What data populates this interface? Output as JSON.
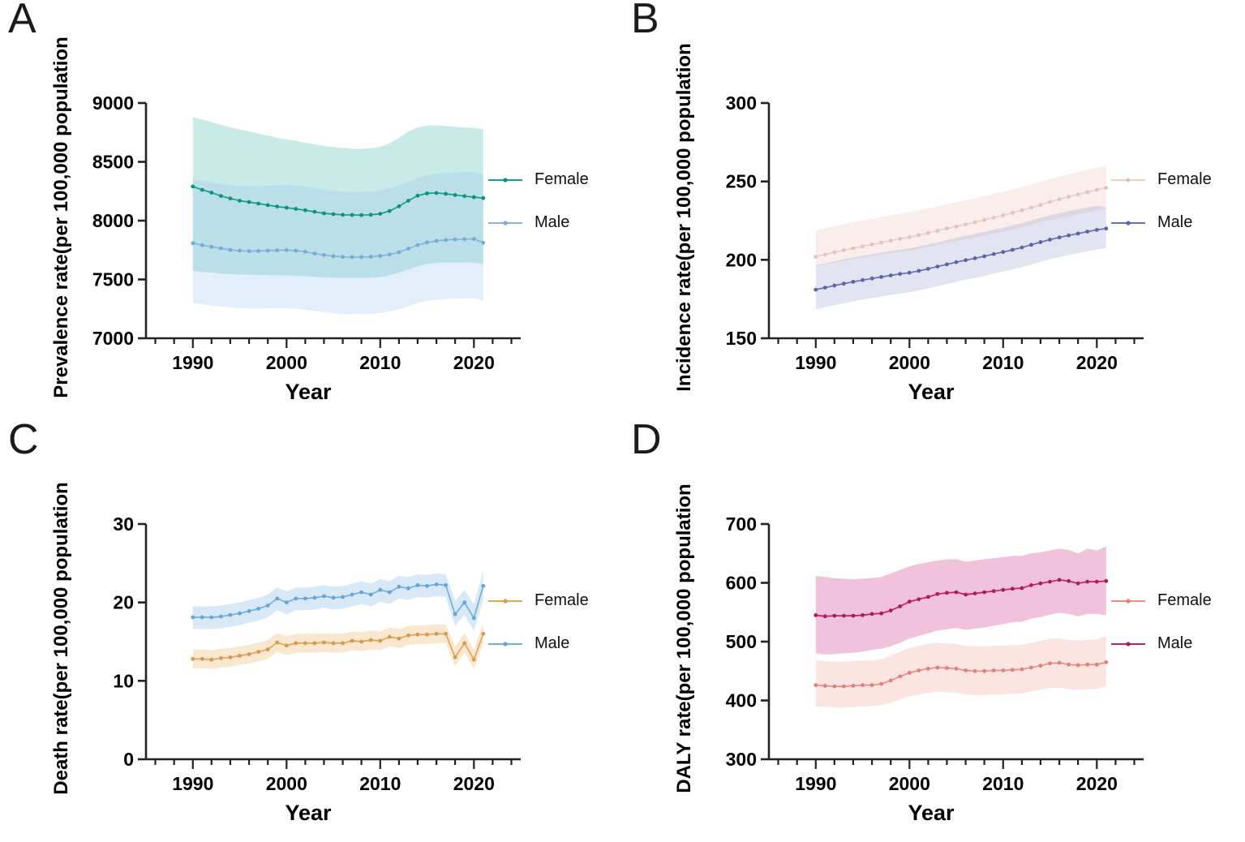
{
  "chart_data": [
    {
      "type": "line",
      "panel_letter": "A",
      "ylabel": "Prevalence rate(per 100,000 population",
      "xlabel": "Year",
      "xlim": [
        1985,
        2025
      ],
      "ylim": [
        7000,
        9000
      ],
      "yticks": [
        7000,
        7500,
        8000,
        8500,
        9000
      ],
      "xticks": [
        1990,
        2000,
        2010,
        2020
      ],
      "minor_tick_step": 2,
      "grid": false,
      "legend_position": "right",
      "x": [
        1990,
        1991,
        1992,
        1993,
        1994,
        1995,
        1996,
        1997,
        1998,
        1999,
        2000,
        2001,
        2002,
        2003,
        2004,
        2005,
        2006,
        2007,
        2008,
        2009,
        2010,
        2011,
        2012,
        2013,
        2014,
        2015,
        2016,
        2017,
        2018,
        2019,
        2020,
        2021
      ],
      "series": [
        {
          "name": "Female",
          "color": "#12a092",
          "marker_color": "#0d9184",
          "band_color": "rgba(77,190,178,0.30)",
          "values": [
            8290,
            8262,
            8238,
            8210,
            8188,
            8170,
            8158,
            8145,
            8132,
            8120,
            8110,
            8100,
            8088,
            8075,
            8062,
            8055,
            8050,
            8048,
            8047,
            8050,
            8058,
            8082,
            8122,
            8170,
            8212,
            8232,
            8235,
            8228,
            8218,
            8208,
            8200,
            8192
          ],
          "band_upper": [
            8880,
            8858,
            8838,
            8815,
            8795,
            8775,
            8758,
            8740,
            8722,
            8705,
            8690,
            8678,
            8662,
            8648,
            8635,
            8625,
            8618,
            8612,
            8610,
            8615,
            8628,
            8655,
            8705,
            8758,
            8792,
            8808,
            8810,
            8805,
            8798,
            8792,
            8788,
            8778
          ],
          "band_lower": [
            7575,
            7565,
            7558,
            7550,
            7545,
            7542,
            7540,
            7538,
            7536,
            7535,
            7535,
            7532,
            7528,
            7522,
            7518,
            7515,
            7513,
            7512,
            7512,
            7515,
            7520,
            7535,
            7558,
            7585,
            7612,
            7632,
            7642,
            7645,
            7645,
            7645,
            7643,
            7630
          ]
        },
        {
          "name": "Male",
          "color": "#88b4de",
          "marker_color": "#7aa9d8",
          "band_color": "rgba(150,195,235,0.28)",
          "values": [
            7808,
            7792,
            7778,
            7765,
            7752,
            7745,
            7740,
            7742,
            7745,
            7748,
            7750,
            7745,
            7735,
            7720,
            7708,
            7698,
            7692,
            7690,
            7690,
            7693,
            7700,
            7712,
            7732,
            7762,
            7792,
            7815,
            7828,
            7835,
            7840,
            7843,
            7845,
            7812
          ],
          "band_upper": [
            8352,
            8338,
            8325,
            8312,
            8302,
            8295,
            8292,
            8294,
            8297,
            8300,
            8302,
            8298,
            8288,
            8275,
            8262,
            8252,
            8246,
            8244,
            8244,
            8248,
            8258,
            8275,
            8300,
            8330,
            8360,
            8385,
            8398,
            8405,
            8410,
            8413,
            8415,
            8390
          ],
          "band_lower": [
            7302,
            7290,
            7280,
            7270,
            7262,
            7256,
            7252,
            7252,
            7253,
            7255,
            7256,
            7252,
            7243,
            7232,
            7222,
            7214,
            7209,
            7207,
            7207,
            7210,
            7216,
            7228,
            7248,
            7273,
            7298,
            7318,
            7328,
            7333,
            7336,
            7338,
            7340,
            7318
          ]
        }
      ]
    },
    {
      "type": "line",
      "panel_letter": "B",
      "ylabel": "Incidence rate(per 100,000 population",
      "xlabel": "Year",
      "xlim": [
        1985,
        2025
      ],
      "ylim": [
        150,
        300
      ],
      "yticks": [
        150,
        200,
        250,
        300
      ],
      "xticks": [
        1990,
        2000,
        2010,
        2020
      ],
      "minor_tick_step": 2,
      "grid": false,
      "legend_position": "right",
      "x": [
        1990,
        1991,
        1992,
        1993,
        1994,
        1995,
        1996,
        1997,
        1998,
        1999,
        2000,
        2001,
        2002,
        2003,
        2004,
        2005,
        2006,
        2007,
        2008,
        2009,
        2010,
        2011,
        2012,
        2013,
        2014,
        2015,
        2016,
        2017,
        2018,
        2019,
        2020,
        2021
      ],
      "series": [
        {
          "name": "Female",
          "color": "#eccfcb",
          "marker_color": "#e5c2be",
          "band_color": "rgba(240,205,200,0.35)",
          "values": [
            202,
            203.4,
            204.8,
            206.1,
            207.4,
            208.6,
            209.8,
            211,
            212.2,
            213.4,
            214.5,
            215.8,
            217.2,
            218.6,
            220,
            221.3,
            222.6,
            224,
            225.4,
            226.9,
            228.4,
            230,
            231.6,
            233.3,
            235.1,
            236.9,
            238.6,
            240.2,
            241.7,
            243.2,
            244.7,
            246
          ],
          "band_upper": [
            219,
            220.2,
            221.5,
            222.7,
            223.9,
            225,
            226.1,
            227.2,
            228.3,
            229.4,
            230.4,
            231.6,
            232.9,
            234.2,
            235.5,
            236.7,
            238,
            239.3,
            240.6,
            242,
            243.4,
            244.9,
            246.4,
            248,
            249.7,
            251.4,
            253,
            254.5,
            255.9,
            257.3,
            258.7,
            260
          ],
          "band_lower": [
            196,
            197.2,
            198.4,
            199.5,
            200.6,
            201.6,
            202.6,
            203.5,
            204.4,
            205.2,
            205.9,
            207,
            208.2,
            209.5,
            210.8,
            212,
            213.2,
            214.3,
            215.5,
            216.8,
            218,
            219.3,
            220.7,
            222.2,
            223.8,
            225.3,
            226.6,
            227.8,
            229,
            230.2,
            231.6,
            233
          ]
        },
        {
          "name": "Male",
          "color": "#6a6fb3",
          "marker_color": "#5d63a8",
          "band_color": "rgba(125,130,190,0.22)",
          "values": [
            181,
            182.3,
            183.6,
            184.8,
            186,
            187.1,
            188.1,
            189.1,
            190.1,
            191,
            191.8,
            193,
            194.3,
            195.7,
            197.1,
            198.5,
            199.8,
            201,
            202.3,
            203.7,
            205,
            206.4,
            207.9,
            209.6,
            211.3,
            212.9,
            214.3,
            215.6,
            216.8,
            218,
            219.1,
            220
          ],
          "band_upper": [
            196.5,
            197.8,
            199.1,
            200.3,
            201.5,
            202.6,
            203.6,
            204.6,
            205.6,
            206.5,
            207.3,
            208.5,
            209.8,
            211.2,
            212.6,
            214,
            215.3,
            216.5,
            217.8,
            219.2,
            220.5,
            221.9,
            223.4,
            225.1,
            226.8,
            228.4,
            229.8,
            231.1,
            232.3,
            233.5,
            234.5,
            233.5
          ],
          "band_lower": [
            168.5,
            169.8,
            171.1,
            172.3,
            173.5,
            174.6,
            175.6,
            176.6,
            177.6,
            178.5,
            179.3,
            180.5,
            181.8,
            183.2,
            184.6,
            186,
            187.3,
            188.5,
            189.8,
            191.2,
            192.5,
            193.9,
            195.4,
            197.1,
            198.8,
            200.4,
            201.8,
            203.1,
            204.3,
            205.5,
            206.6,
            207.5
          ]
        }
      ]
    },
    {
      "type": "line",
      "panel_letter": "C",
      "ylabel": "Death rate(per 100,000 population",
      "xlabel": "Year",
      "xlim": [
        1985,
        2025
      ],
      "ylim": [
        0,
        30
      ],
      "yticks": [
        0,
        10,
        20,
        30
      ],
      "xticks": [
        1990,
        2000,
        2010,
        2020
      ],
      "minor_tick_step": 2,
      "grid": false,
      "legend_position": "right",
      "x": [
        1990,
        1991,
        1992,
        1993,
        1994,
        1995,
        1996,
        1997,
        1998,
        1999,
        2000,
        2001,
        2002,
        2003,
        2004,
        2005,
        2006,
        2007,
        2008,
        2009,
        2010,
        2011,
        2012,
        2013,
        2014,
        2015,
        2016,
        2017,
        2018,
        2019,
        2020,
        2021
      ],
      "series": [
        {
          "name": "Female",
          "color": "#dca75c",
          "marker_color": "#d19c4e",
          "band_color": "rgba(235,170,85,0.28)",
          "values": [
            12.8,
            12.8,
            12.7,
            12.9,
            13.0,
            13.2,
            13.4,
            13.7,
            14.0,
            14.9,
            14.5,
            14.8,
            14.8,
            14.8,
            14.9,
            14.8,
            14.8,
            15.1,
            15.0,
            15.2,
            15.1,
            15.6,
            15.4,
            15.8,
            15.9,
            15.9,
            16.0,
            16.0,
            13.0,
            14.8,
            12.7,
            16.0
          ],
          "band_upper": [
            14.0,
            14.0,
            13.9,
            14.1,
            14.2,
            14.4,
            14.6,
            14.9,
            15.2,
            16.1,
            15.7,
            16.0,
            16.0,
            16.0,
            16.1,
            16.0,
            16.0,
            16.3,
            16.2,
            16.4,
            16.3,
            16.8,
            16.6,
            17.0,
            17.1,
            17.1,
            17.2,
            17.2,
            14.3,
            16.1,
            14.0,
            17.3
          ],
          "band_lower": [
            11.6,
            11.6,
            11.5,
            11.7,
            11.8,
            12.0,
            12.2,
            12.5,
            12.8,
            13.7,
            13.3,
            13.6,
            13.6,
            13.6,
            13.7,
            13.6,
            13.6,
            13.9,
            13.8,
            14.0,
            13.9,
            14.4,
            14.2,
            14.6,
            14.7,
            14.7,
            14.8,
            14.8,
            11.8,
            13.6,
            11.5,
            14.8
          ]
        },
        {
          "name": "Male",
          "color": "#72b0dc",
          "marker_color": "#64a5d6",
          "band_color": "rgba(125,180,230,0.30)",
          "values": [
            18.1,
            18.1,
            18.1,
            18.2,
            18.4,
            18.6,
            18.9,
            19.2,
            19.6,
            20.5,
            20.0,
            20.5,
            20.5,
            20.6,
            20.8,
            20.6,
            20.7,
            21.0,
            21.3,
            21.0,
            21.6,
            21.3,
            22.0,
            21.8,
            22.2,
            22.1,
            22.3,
            22.2,
            18.5,
            20.0,
            18.0,
            22.1
          ],
          "band_upper": [
            19.5,
            19.5,
            19.5,
            19.6,
            19.8,
            20.0,
            20.3,
            20.6,
            21.0,
            21.9,
            21.4,
            21.9,
            21.9,
            22.0,
            22.2,
            22.0,
            22.1,
            22.4,
            22.7,
            22.4,
            23.0,
            22.7,
            23.4,
            23.2,
            23.6,
            23.5,
            23.7,
            23.6,
            20.2,
            21.6,
            19.8,
            24.0
          ],
          "band_lower": [
            16.6,
            16.6,
            16.6,
            16.7,
            16.9,
            17.1,
            17.4,
            17.7,
            18.1,
            19.0,
            18.5,
            19.0,
            19.0,
            19.1,
            19.3,
            19.1,
            19.2,
            19.5,
            19.8,
            19.5,
            20.1,
            19.8,
            20.5,
            20.3,
            20.7,
            20.6,
            20.8,
            20.7,
            17.0,
            18.4,
            16.4,
            20.3
          ]
        }
      ]
    },
    {
      "type": "line",
      "panel_letter": "D",
      "ylabel": "DALY rate(per 100,000 population",
      "xlabel": "Year",
      "xlim": [
        1985,
        2025
      ],
      "ylim": [
        300,
        700
      ],
      "yticks": [
        300,
        400,
        500,
        600,
        700
      ],
      "xticks": [
        1990,
        2000,
        2010,
        2020
      ],
      "minor_tick_step": 2,
      "grid": false,
      "legend_position": "right",
      "x": [
        1990,
        1991,
        1992,
        1993,
        1994,
        1995,
        1996,
        1997,
        1998,
        1999,
        2000,
        2001,
        2002,
        2003,
        2004,
        2005,
        2006,
        2007,
        2008,
        2009,
        2010,
        2011,
        2012,
        2013,
        2014,
        2015,
        2016,
        2017,
        2018,
        2019,
        2020,
        2021
      ],
      "series": [
        {
          "name": "Female",
          "color": "#e6908a",
          "marker_color": "#e28078",
          "band_color": "rgba(245,175,165,0.33)",
          "values": [
            426,
            425,
            424,
            424,
            425,
            426,
            426,
            428,
            434,
            441,
            447,
            451,
            454,
            456,
            455,
            454,
            451,
            450,
            450,
            451,
            451,
            452,
            453,
            456,
            459,
            463,
            464,
            461,
            460,
            461,
            461,
            465
          ],
          "band_upper": [
            468,
            467,
            466,
            466,
            467,
            468,
            468,
            470,
            476,
            483,
            489,
            493,
            496,
            498,
            497,
            496,
            493,
            492,
            492,
            493,
            493,
            494,
            495,
            498,
            501,
            505,
            506,
            503,
            502,
            503,
            504,
            510
          ],
          "band_lower": [
            390,
            389,
            388,
            388,
            389,
            390,
            390,
            392,
            396,
            402,
            407,
            410,
            413,
            415,
            414,
            413,
            410,
            409,
            409,
            410,
            410,
            411,
            412,
            415,
            418,
            421,
            422,
            419,
            418,
            419,
            419,
            425
          ]
        },
        {
          "name": "Male",
          "color": "#c12069",
          "marker_color": "#ab1b5e",
          "band_color": "rgba(219,95,160,0.38)",
          "values": [
            545,
            543,
            544,
            544,
            544,
            545,
            547,
            548,
            553,
            560,
            568,
            572,
            576,
            581,
            583,
            584,
            580,
            582,
            584,
            586,
            588,
            590,
            591,
            596,
            599,
            602,
            605,
            603,
            599,
            602,
            602,
            603
          ],
          "band_upper": [
            612,
            610,
            608,
            607,
            606,
            607,
            608,
            610,
            616,
            622,
            628,
            632,
            635,
            638,
            640,
            640,
            636,
            638,
            640,
            642,
            644,
            646,
            646,
            650,
            652,
            655,
            658,
            656,
            650,
            658,
            655,
            662
          ],
          "band_lower": [
            480,
            478,
            479,
            480,
            481,
            483,
            486,
            488,
            492,
            498,
            505,
            510,
            514,
            519,
            521,
            523,
            520,
            522,
            524,
            527,
            530,
            533,
            534,
            539,
            542,
            546,
            549,
            547,
            543,
            547,
            547,
            545
          ]
        }
      ]
    }
  ]
}
